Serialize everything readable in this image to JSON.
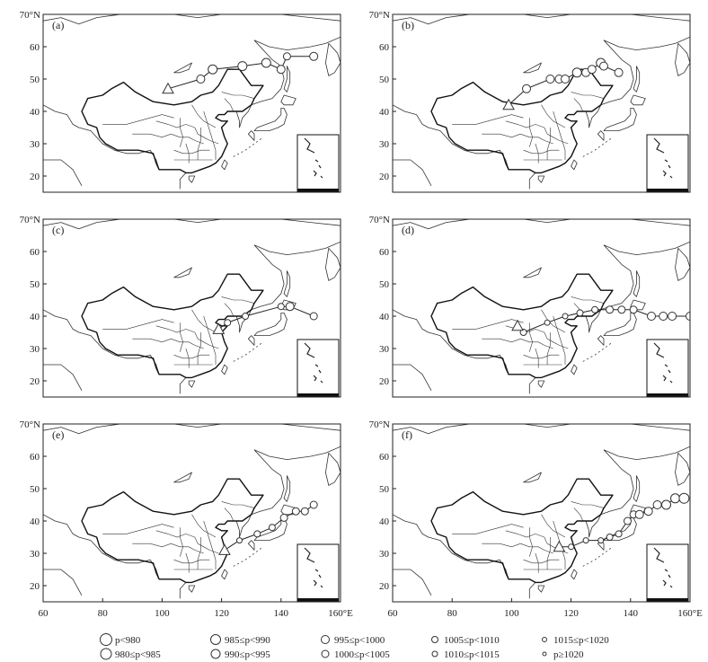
{
  "axes": {
    "x_ticks": [
      "60",
      "80",
      "100",
      "120",
      "140",
      "160°E"
    ],
    "y_ticks_top": "70°N",
    "y_ticks": [
      "60",
      "50",
      "40",
      "30",
      "20"
    ],
    "lon_range": [
      60,
      160
    ],
    "lat_range": [
      15,
      70
    ]
  },
  "panels": [
    {
      "label": "(a)",
      "genesis": {
        "lon": 102,
        "lat": 47
      },
      "track": [
        [
          102,
          47
        ],
        [
          113,
          50
        ],
        [
          117,
          53
        ],
        [
          127,
          54
        ],
        [
          135,
          55
        ],
        [
          140,
          53
        ],
        [
          142,
          57
        ],
        [
          151,
          57
        ]
      ],
      "sizes": [
        "980",
        "995",
        "990",
        "990",
        "990",
        "995",
        "1000",
        "995"
      ]
    },
    {
      "label": "(b)",
      "genesis": {
        "lon": 99,
        "lat": 42
      },
      "track": [
        [
          99,
          42
        ],
        [
          105,
          47
        ],
        [
          113,
          50
        ],
        [
          116,
          50
        ],
        [
          118,
          50
        ],
        [
          122,
          52
        ],
        [
          125,
          52
        ],
        [
          127,
          53
        ],
        [
          130,
          55
        ],
        [
          131,
          54
        ],
        [
          136,
          52
        ]
      ],
      "sizes": [
        "1010",
        "995",
        "995",
        "995",
        "995",
        "990",
        "995",
        "995",
        "990",
        "995",
        "995"
      ]
    },
    {
      "label": "(c)",
      "genesis": {
        "lon": 119,
        "lat": 36
      },
      "track": [
        [
          119,
          36
        ],
        [
          122,
          38
        ],
        [
          128,
          40
        ],
        [
          140,
          43
        ],
        [
          143,
          43
        ],
        [
          151,
          40
        ]
      ],
      "sizes": [
        "1005",
        "1005",
        "1005",
        "1005",
        "995",
        "1000"
      ]
    },
    {
      "label": "(d)",
      "genesis": {
        "lon": 102,
        "lat": 37
      },
      "track": [
        [
          102,
          37
        ],
        [
          104,
          35
        ],
        [
          112,
          38
        ],
        [
          118,
          40
        ],
        [
          123,
          41
        ],
        [
          128,
          42
        ],
        [
          133,
          42
        ],
        [
          137,
          42
        ],
        [
          141,
          42
        ],
        [
          147,
          40
        ],
        [
          151,
          40
        ],
        [
          154,
          40
        ],
        [
          160,
          40
        ]
      ],
      "sizes": [
        "1010",
        "1005",
        "1010",
        "1010",
        "1005",
        "1005",
        "1000",
        "1000",
        "1000",
        "995",
        "995",
        "995",
        "995"
      ]
    },
    {
      "label": "(e)",
      "genesis": {
        "lon": 121,
        "lat": 31
      },
      "track": [
        [
          121,
          31
        ],
        [
          126,
          34
        ],
        [
          132,
          36
        ],
        [
          137,
          38
        ],
        [
          141,
          41
        ],
        [
          145,
          43
        ],
        [
          148,
          43
        ],
        [
          151,
          45
        ]
      ],
      "sizes": [
        "1015",
        "1010",
        "1005",
        "1005",
        "1000",
        "1000",
        "1000",
        "1000"
      ]
    },
    {
      "label": "(f)",
      "genesis": {
        "lon": 116,
        "lat": 32
      },
      "track": [
        [
          116,
          32
        ],
        [
          120,
          32
        ],
        [
          125,
          34
        ],
        [
          130,
          34
        ],
        [
          133,
          35
        ],
        [
          136,
          36
        ],
        [
          139,
          40
        ],
        [
          141,
          42
        ],
        [
          143,
          42
        ],
        [
          146,
          43
        ],
        [
          149,
          45
        ],
        [
          152,
          45
        ],
        [
          155,
          47
        ],
        [
          158,
          47
        ]
      ],
      "sizes": [
        "1015",
        "1010",
        "1010",
        "1010",
        "1005",
        "1005",
        "1000",
        "1000",
        "995",
        "995",
        "995",
        "990",
        "990",
        "985"
      ]
    }
  ],
  "legend": [
    {
      "text": "p<980",
      "r": 6.5
    },
    {
      "text": "985≤p<990",
      "r": 5.5
    },
    {
      "text": "995≤p<1000",
      "r": 4.5
    },
    {
      "text": "1005≤p<1010",
      "r": 3.5
    },
    {
      "text": "1015≤p<1020",
      "r": 2.5
    },
    {
      "text": "980≤p<985",
      "r": 6
    },
    {
      "text": "990≤p<995",
      "r": 5
    },
    {
      "text": "1000≤p<1005",
      "r": 4
    },
    {
      "text": "1010≤p<1015",
      "r": 3
    },
    {
      "text": "p≥1020",
      "r": 2
    }
  ],
  "style": {
    "line": "#222222",
    "land": "#333333"
  }
}
